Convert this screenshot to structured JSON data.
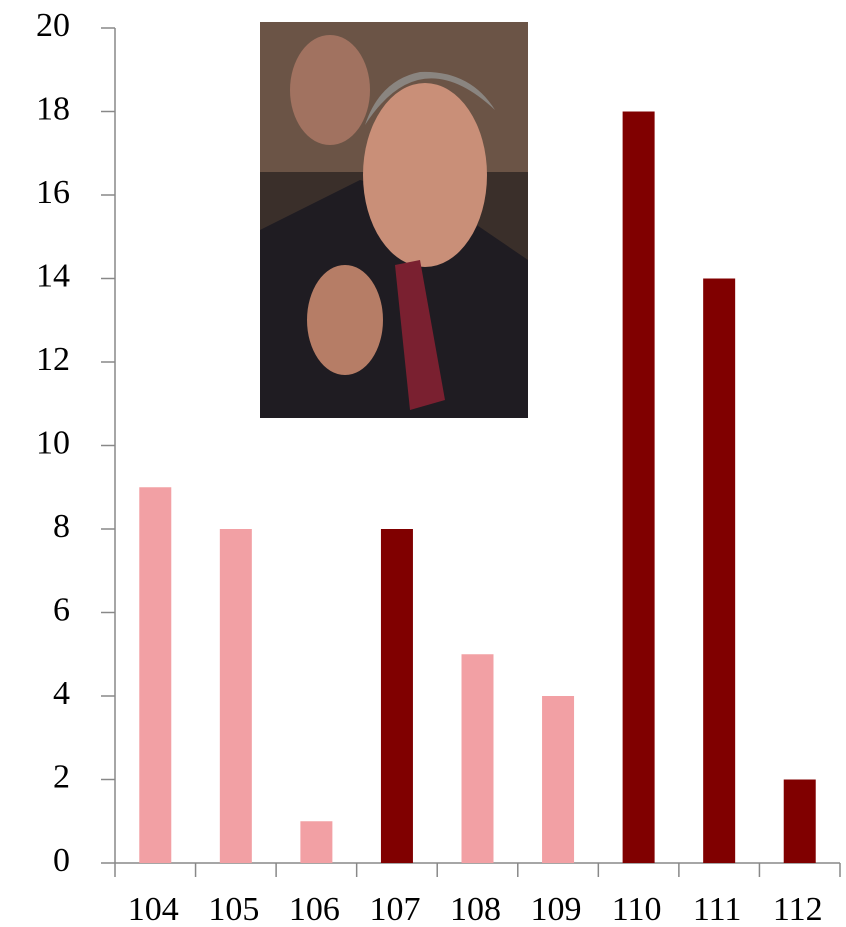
{
  "chart_data": {
    "type": "bar",
    "categories": [
      "104",
      "105",
      "106",
      "107",
      "108",
      "109",
      "110",
      "111",
      "112"
    ],
    "values": [
      9,
      8,
      1,
      8,
      5,
      4,
      18,
      14,
      2
    ],
    "colors": [
      "#f2a0a4",
      "#f2a0a4",
      "#f2a0a4",
      "#800000",
      "#f2a0a4",
      "#f2a0a4",
      "#800000",
      "#800000",
      "#800000"
    ],
    "ylim": [
      0,
      20
    ],
    "yticks": [
      0,
      2,
      4,
      6,
      8,
      10,
      12,
      14,
      16,
      18,
      20
    ],
    "grid": false
  }
}
